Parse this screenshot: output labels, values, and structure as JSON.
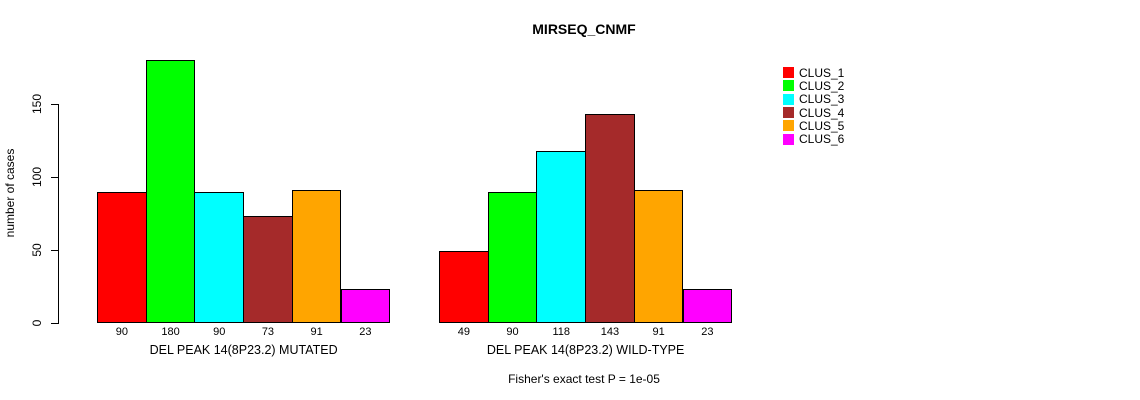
{
  "chart_data": {
    "type": "bar",
    "title": "MIRSEQ_CNMF",
    "ylabel": "number of cases",
    "xlabel": "",
    "yticks": [
      0,
      50,
      100,
      150
    ],
    "ylim": [
      0,
      183
    ],
    "grid": false,
    "legend_position": "right",
    "bar_borders": "black",
    "categories": [
      "DEL PEAK 14(8P23.2) MUTATED",
      "DEL PEAK 14(8P23.2) WILD-TYPE"
    ],
    "series": [
      {
        "name": "CLUS_1",
        "color": "#FF0000",
        "values": [
          90,
          49
        ]
      },
      {
        "name": "CLUS_2",
        "color": "#00FF00",
        "values": [
          180,
          90
        ]
      },
      {
        "name": "CLUS_3",
        "color": "#00FFFF",
        "values": [
          90,
          118
        ]
      },
      {
        "name": "CLUS_4",
        "color": "#A52A2A",
        "values": [
          73,
          143
        ]
      },
      {
        "name": "CLUS_5",
        "color": "#FFA500",
        "values": [
          91,
          91
        ]
      },
      {
        "name": "CLUS_6",
        "color": "#FF00FF",
        "values": [
          23,
          23
        ]
      }
    ],
    "bar_value_labels": [
      [
        90,
        180,
        90,
        73,
        91,
        23
      ],
      [
        49,
        90,
        118,
        143,
        91,
        23
      ]
    ],
    "annotation": "Fisher's exact test P = 1e-05"
  }
}
